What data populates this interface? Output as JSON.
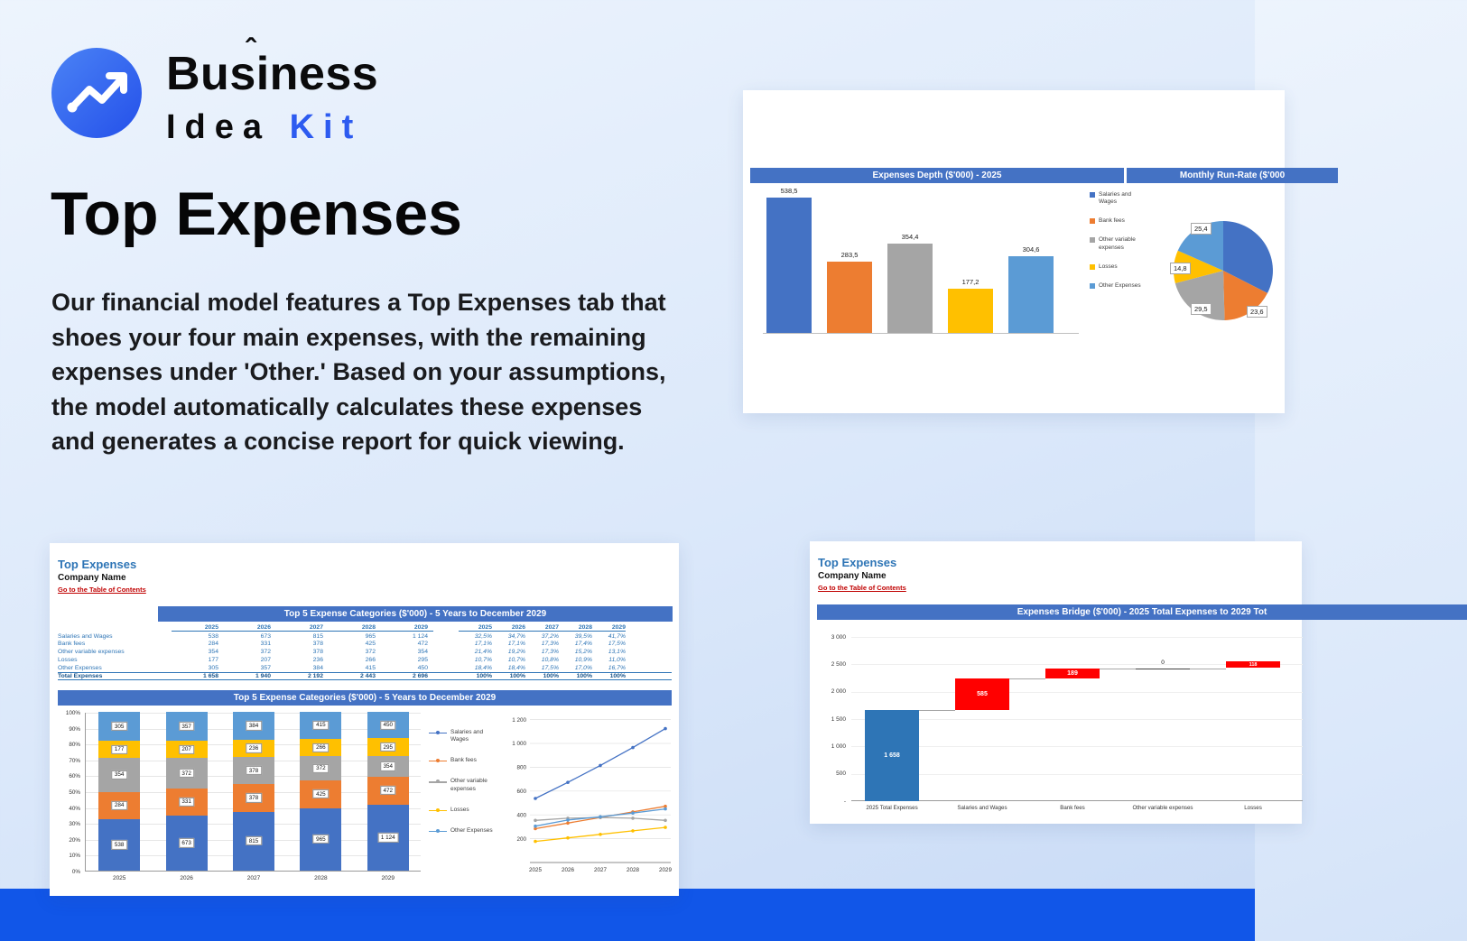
{
  "page": {
    "logo": {
      "brand_line1": "Business",
      "brand_line2_word1": "Idea",
      "brand_line2_word2": "Kit",
      "circle_color": "#2f66ee",
      "arrow_icon": "trending-up-arrow"
    },
    "hero": {
      "title": "Top Expenses",
      "description": "Our financial model features a Top Expenses tab that shoes your four main expenses, with the remaining expenses under 'Other.' Based on your assumptions, the model automatically calculates these expenses and generates a concise report for quick viewing."
    },
    "accent_band_color": "#1156e8"
  },
  "palette": {
    "excel_header": "#4472C4",
    "series": [
      "#4472C4",
      "#ED7D31",
      "#A5A5A5",
      "#FFC000",
      "#5B9BD5"
    ],
    "waterfall_start": "#2E75B6",
    "waterfall_increase": "#FF0000",
    "link_red": "#C00000",
    "sheet_title_blue": "#2E75B6"
  },
  "series_names": [
    "Salaries and Wages",
    "Bank fees",
    "Other variable expenses",
    "Losses",
    "Other Expenses"
  ],
  "depth_card": {
    "header_left": "Expenses Depth ($'000) - 2025",
    "header_right": "Monthly Run-Rate ($'000"
  },
  "sheet_left": {
    "title": "Top Expenses",
    "company": "Company Name",
    "link": "Go to the Table of Contents",
    "table_header": "Top 5 Expense Categories ($'000) - 5 Years to December 2029",
    "chart_header": "Top 5 Expense Categories ($'000) - 5 Years to December 2029"
  },
  "sheet_right": {
    "title": "Top Expenses",
    "company": "Company Name",
    "link": "Go to the Table of Contents",
    "chart_header": "Expenses Bridge ($'000) - 2025 Total Expenses to 2029 Tot"
  },
  "chart_data": [
    {
      "id": "depth_bar",
      "type": "bar",
      "title": "Expenses Depth ($'000) - 2025",
      "categories": [
        "Salaries and Wages",
        "Bank fees",
        "Other variable expenses",
        "Losses",
        "Other Expenses"
      ],
      "values": [
        538.5,
        283.5,
        354.4,
        177.2,
        304.6
      ],
      "labels": [
        "538,5",
        "283,5",
        "354,4",
        "177,2",
        "304,6"
      ],
      "ylim": [
        0,
        600
      ],
      "grid": false,
      "legend_position": "right"
    },
    {
      "id": "runrate_pie",
      "type": "pie",
      "title": "Monthly Run-Rate ($'000",
      "labels": [
        "Salaries and Wages",
        "Bank fees",
        "Other variable expenses",
        "Losses",
        "Other Expenses"
      ],
      "values": [
        44.9,
        23.6,
        29.5,
        14.8,
        25.4
      ],
      "shown_labels": [
        "25,4",
        "14,8",
        "29,5",
        "23,6"
      ]
    },
    {
      "id": "category_table",
      "type": "table",
      "columns": [
        "2025",
        "2026",
        "2027",
        "2028",
        "2029"
      ],
      "rows": [
        {
          "label": "Salaries and Wages",
          "values": [
            "538",
            "673",
            "815",
            "965",
            "1 124"
          ],
          "pct": [
            "32,5%",
            "34,7%",
            "37,2%",
            "39,5%",
            "41,7%"
          ]
        },
        {
          "label": "Bank fees",
          "values": [
            "284",
            "331",
            "378",
            "425",
            "472"
          ],
          "pct": [
            "17,1%",
            "17,1%",
            "17,3%",
            "17,4%",
            "17,5%"
          ]
        },
        {
          "label": "Other variable expenses",
          "values": [
            "354",
            "372",
            "378",
            "372",
            "354"
          ],
          "pct": [
            "21,4%",
            "19,2%",
            "17,3%",
            "15,2%",
            "13,1%"
          ]
        },
        {
          "label": "Losses",
          "values": [
            "177",
            "207",
            "236",
            "266",
            "295"
          ],
          "pct": [
            "10,7%",
            "10,7%",
            "10,8%",
            "10,9%",
            "11,0%"
          ]
        },
        {
          "label": "Other Expenses",
          "values": [
            "305",
            "357",
            "384",
            "415",
            "450"
          ],
          "pct": [
            "18,4%",
            "18,4%",
            "17,5%",
            "17,0%",
            "16,7%"
          ]
        }
      ],
      "total": {
        "label": "Total Expenses",
        "values": [
          "1 658",
          "1 940",
          "2 192",
          "2 443",
          "2 696"
        ],
        "pct": [
          "100%",
          "100%",
          "100%",
          "100%",
          "100%"
        ]
      }
    },
    {
      "id": "stacked_100",
      "type": "bar",
      "stacked": true,
      "title": "Top 5 Expense Categories ($'000) - 5 Years to December 2029",
      "categories": [
        "2025",
        "2026",
        "2027",
        "2028",
        "2029"
      ],
      "yticks": [
        "0%",
        "10%",
        "20%",
        "30%",
        "40%",
        "50%",
        "60%",
        "70%",
        "80%",
        "90%",
        "100%"
      ],
      "series": [
        {
          "name": "Salaries and Wages",
          "values": [
            538,
            673,
            815,
            965,
            1124
          ],
          "labels": [
            "538",
            "673",
            "815",
            "965",
            "1 124"
          ]
        },
        {
          "name": "Bank fees",
          "values": [
            284,
            331,
            378,
            425,
            472
          ],
          "labels": [
            "284",
            "331",
            "378",
            "425",
            "472"
          ]
        },
        {
          "name": "Other variable expenses",
          "values": [
            354,
            372,
            378,
            372,
            354
          ],
          "labels": [
            "354",
            "372",
            "378",
            "372",
            "354"
          ]
        },
        {
          "name": "Losses",
          "values": [
            177,
            207,
            236,
            266,
            295
          ],
          "labels": [
            "177",
            "207",
            "236",
            "266",
            "295"
          ]
        },
        {
          "name": "Other Expenses",
          "values": [
            305,
            357,
            384,
            415,
            450
          ],
          "labels": [
            "305",
            "357",
            "384",
            "415",
            "450"
          ]
        }
      ]
    },
    {
      "id": "trend_lines",
      "type": "line",
      "categories": [
        "2025",
        "2026",
        "2027",
        "2028",
        "2029"
      ],
      "yticks": [
        "200",
        "400",
        "600",
        "800",
        "1 000",
        "1 200"
      ],
      "ylim": [
        0,
        1250
      ],
      "series": [
        {
          "name": "Salaries and Wages",
          "values": [
            538,
            673,
            815,
            965,
            1124
          ]
        },
        {
          "name": "Bank fees",
          "values": [
            284,
            331,
            378,
            425,
            472
          ]
        },
        {
          "name": "Other variable expenses",
          "values": [
            354,
            372,
            378,
            372,
            354
          ]
        },
        {
          "name": "Losses",
          "values": [
            177,
            207,
            236,
            266,
            295
          ]
        },
        {
          "name": "Other Expenses",
          "values": [
            305,
            357,
            384,
            415,
            450
          ]
        }
      ]
    },
    {
      "id": "bridge_waterfall",
      "type": "waterfall",
      "title": "Expenses Bridge ($'000) - 2025 Total Expenses to 2029 Tot",
      "categories": [
        "2025 Total Expenses",
        "Salaries and Wages",
        "Bank fees",
        "Other variable expenses",
        "Losses"
      ],
      "values": [
        1658,
        585,
        189,
        0,
        118
      ],
      "labels": [
        "1 658",
        "585",
        "189",
        "0",
        "118"
      ],
      "yticks": [
        "-",
        "500",
        "1 000",
        "1 500",
        "2 000",
        "2 500",
        "3 000"
      ],
      "ylim": [
        0,
        3000
      ]
    }
  ]
}
